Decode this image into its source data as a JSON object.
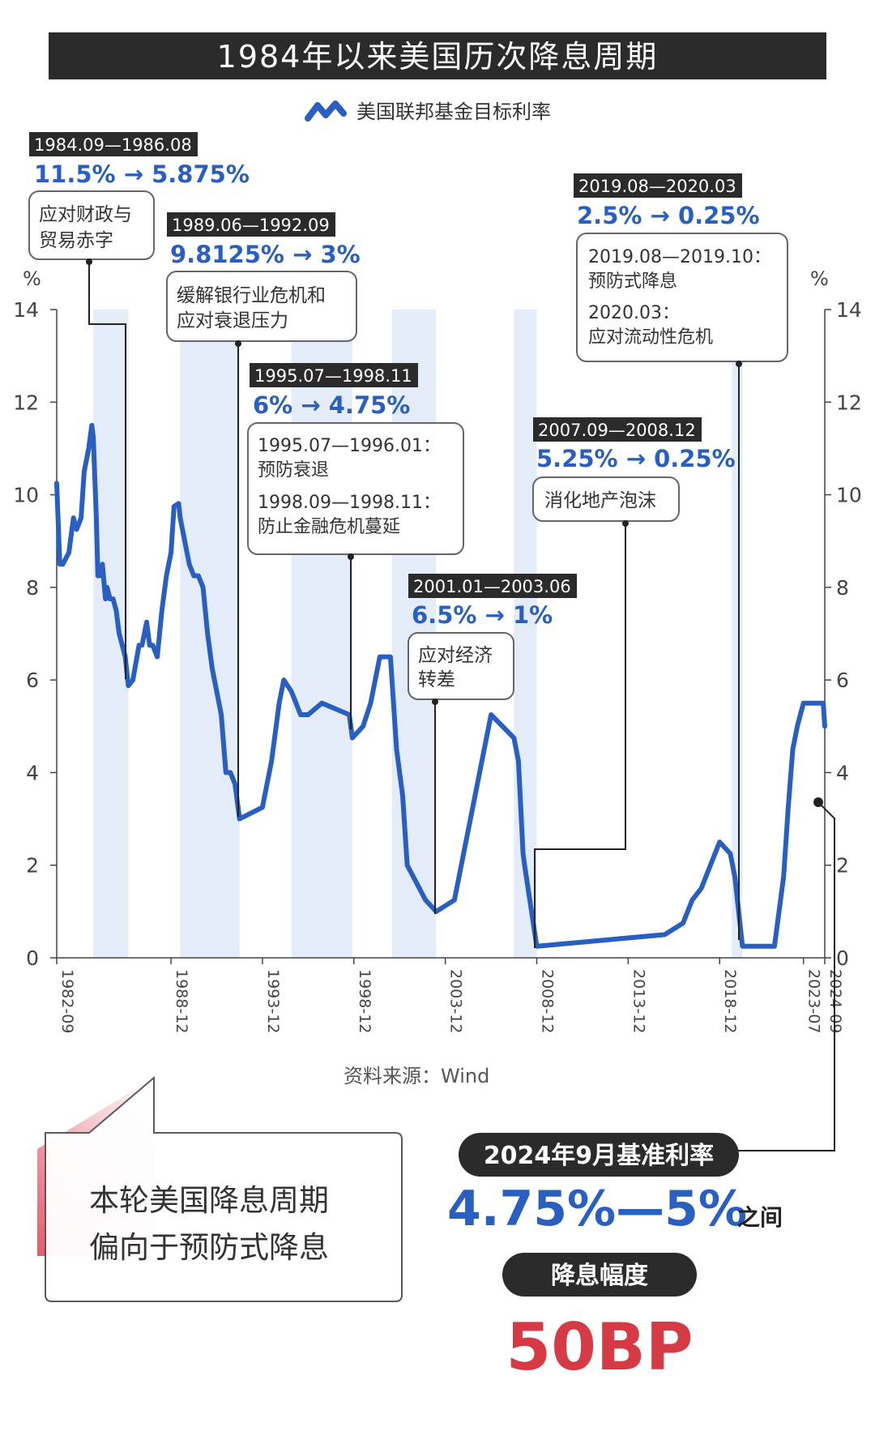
{
  "title": "1984年以来美国历次降息周期",
  "legend_label": "美国联邦基金目标利率",
  "axis_unit": "%",
  "source": "资料来源：Wind",
  "annotations": [
    {
      "period": "1984.09—1986.08",
      "change_from": "11.5%",
      "change_to": "5.875%",
      "notes": [
        "应对财政与",
        "贸易赤字"
      ]
    },
    {
      "period": "1989.06—1992.09",
      "change_from": "9.8125%",
      "change_to": "3%",
      "notes": [
        "缓解银行业危机和",
        "应对衰退压力"
      ]
    },
    {
      "period": "1995.07—1998.11",
      "change_from": "6%",
      "change_to": "4.75%",
      "notes": [
        "1995.07—1996.01：",
        "预防衰退",
        "1998.09—1998.11：",
        "防止金融危机蔓延"
      ]
    },
    {
      "period": "2001.01—2003.06",
      "change_from": "6.5%",
      "change_to": "1%",
      "notes": [
        "应对经济",
        "转差"
      ]
    },
    {
      "period": "2007.09—2008.12",
      "change_from": "5.25%",
      "change_to": "0.25%",
      "notes": [
        "消化地产泡沫"
      ]
    },
    {
      "period": "2019.08—2020.03",
      "change_from": "2.5%",
      "change_to": "0.25%",
      "notes": [
        "2019.08—2019.10：",
        "预防式降息",
        "2020.03：",
        "应对流动性危机"
      ]
    }
  ],
  "callout": {
    "line1": "本轮美国降息周期",
    "line2": "偏向于预防式降息"
  },
  "current": {
    "label": "2024年9月基准利率",
    "range": "4.75%—5%",
    "suffix": "之间",
    "cut_label": "降息幅度",
    "cut_value": "50BP"
  },
  "colors": {
    "line": "#2a5fc2",
    "band": "#e4ecfa",
    "accent": "#2a5fc2",
    "red": "#d63a45",
    "dark": "#2b2b2b"
  },
  "chart_data": {
    "type": "line",
    "title": "1984年以来美国历次降息周期",
    "series_name": "美国联邦基金目标利率",
    "x_ticks": [
      "1982-09",
      "1988-12",
      "1993-12",
      "1998-12",
      "2003-12",
      "2008-12",
      "2013-12",
      "2018-12",
      "2023-07",
      "2024-09"
    ],
    "xlim": [
      "1982-09",
      "2024-09"
    ],
    "ylim": [
      0,
      14
    ],
    "y_ticks": [
      0,
      2,
      4,
      6,
      8,
      10,
      12,
      14
    ],
    "ylabel_left": "%",
    "ylabel_right": "%",
    "shaded_periods": [
      [
        "1984-09",
        "1986-08"
      ],
      [
        "1989-06",
        "1992-09"
      ],
      [
        "1995-07",
        "1998-11"
      ],
      [
        "2001-01",
        "2003-06"
      ],
      [
        "2007-09",
        "2008-12"
      ],
      [
        "2019-08",
        "2020-03"
      ]
    ],
    "x": [
      "1982-09",
      "1982-11",
      "1983-01",
      "1983-05",
      "1983-08",
      "1983-10",
      "1984-01",
      "1984-03",
      "1984-06",
      "1984-08",
      "1984-09",
      "1984-11",
      "1984-12",
      "1985-01",
      "1985-03",
      "1985-05",
      "1985-06",
      "1985-08",
      "1985-10",
      "1985-12",
      "1986-02",
      "1986-04",
      "1986-06",
      "1986-08",
      "1986-11",
      "1987-03",
      "1987-05",
      "1987-08",
      "1987-10",
      "1987-12",
      "1988-03",
      "1988-06",
      "1988-09",
      "1988-12",
      "1989-02",
      "1989-05",
      "1989-06",
      "1989-09",
      "1989-12",
      "1990-03",
      "1990-06",
      "1990-09",
      "1990-12",
      "1991-03",
      "1991-06",
      "1991-09",
      "1991-12",
      "1992-03",
      "1992-06",
      "1992-09",
      "1993-12",
      "1994-06",
      "1994-11",
      "1995-02",
      "1995-07",
      "1996-01",
      "1996-06",
      "1997-03",
      "1998-09",
      "1998-10",
      "1998-11",
      "1999-06",
      "1999-11",
      "2000-05",
      "2000-12",
      "2001-04",
      "2001-08",
      "2001-11",
      "2002-11",
      "2003-06",
      "2004-06",
      "2005-06",
      "2006-06",
      "2007-09",
      "2007-12",
      "2008-03",
      "2008-04",
      "2008-12",
      "2015-12",
      "2016-12",
      "2017-06",
      "2017-12",
      "2018-06",
      "2018-12",
      "2019-07",
      "2019-10",
      "2020-03",
      "2021-12",
      "2022-06",
      "2022-09",
      "2022-12",
      "2023-03",
      "2023-07",
      "2024-08",
      "2024-09"
    ],
    "y": [
      10.25,
      8.5,
      8.5,
      8.75,
      9.5,
      9.25,
      9.5,
      10.5,
      11.0,
      11.5,
      11.25,
      9.5,
      8.25,
      8.25,
      8.5,
      7.75,
      8.0,
      7.75,
      7.75,
      7.5,
      7.0,
      6.75,
      6.5,
      5.875,
      6.0,
      6.75,
      6.75,
      7.25,
      6.75,
      6.75,
      6.5,
      7.5,
      8.25,
      8.75,
      9.75,
      9.8125,
      9.5,
      9.0,
      8.5,
      8.25,
      8.25,
      8.0,
      7.0,
      6.25,
      5.75,
      5.25,
      4.0,
      4.0,
      3.75,
      3.0,
      3.25,
      4.25,
      5.5,
      6.0,
      5.75,
      5.25,
      5.25,
      5.5,
      5.25,
      5.0,
      4.75,
      5.0,
      5.5,
      6.5,
      6.5,
      4.5,
      3.5,
      2.0,
      1.25,
      1.0,
      1.25,
      3.25,
      5.25,
      4.75,
      4.25,
      2.25,
      2.0,
      0.25,
      0.5,
      0.75,
      1.25,
      1.5,
      2.0,
      2.5,
      2.25,
      1.75,
      0.25,
      0.25,
      1.75,
      3.25,
      4.5,
      5.0,
      5.5,
      5.5,
      5.0
    ]
  }
}
